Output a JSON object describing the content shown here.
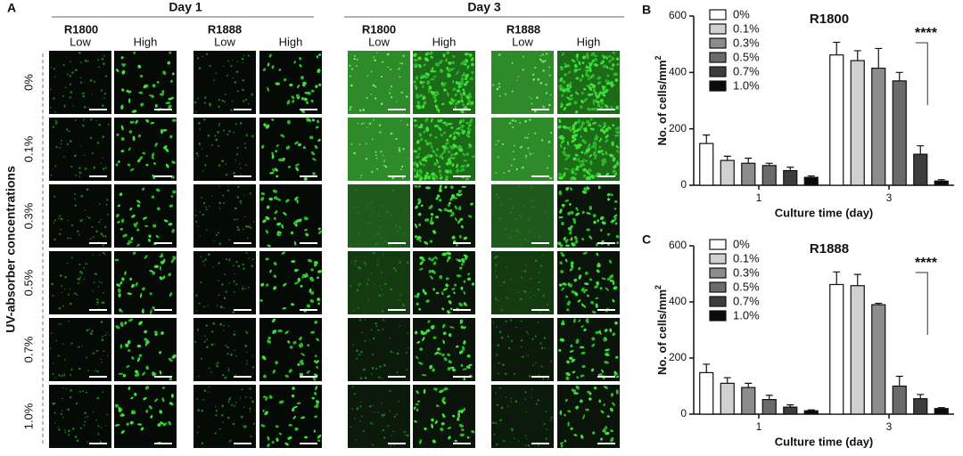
{
  "panel_a": {
    "panel_label": "A",
    "days": [
      "Day 1",
      "Day 3"
    ],
    "groups": [
      "R1800",
      "R1888",
      "R1800",
      "R1888"
    ],
    "levels": [
      "Low",
      "High",
      "Low",
      "High",
      "Low",
      "High",
      "Low",
      "High"
    ],
    "rows": [
      "0%",
      "0.1%",
      "0.3%",
      "0.5%",
      "0.7%",
      "1.0%"
    ],
    "ylabel": "UV-absorber concentrations"
  },
  "chart_data": [
    {
      "type": "bar",
      "panel_label": "B",
      "title": "R1800",
      "ylabel": "No. of cells/mm",
      "ylabel_sup": "2",
      "xlabel": "Culture time (day)",
      "categories": [
        "1",
        "3"
      ],
      "ylim": [
        0,
        600
      ],
      "yticks": [
        0,
        200,
        400,
        600
      ],
      "legend": "upper-left",
      "annotation": "****",
      "series": [
        {
          "name": "0%",
          "color": "#ffffff",
          "values": [
            148,
            462
          ],
          "errors": [
            30,
            45
          ]
        },
        {
          "name": "0.1%",
          "color": "#d0d0d0",
          "values": [
            88,
            442
          ],
          "errors": [
            15,
            35
          ]
        },
        {
          "name": "0.3%",
          "color": "#8c8c8c",
          "values": [
            78,
            415
          ],
          "errors": [
            18,
            70
          ]
        },
        {
          "name": "0.5%",
          "color": "#6a6a6a",
          "values": [
            70,
            370
          ],
          "errors": [
            8,
            30
          ]
        },
        {
          "name": "0.7%",
          "color": "#3c3c3c",
          "values": [
            52,
            110
          ],
          "errors": [
            12,
            30
          ]
        },
        {
          "name": "1.0%",
          "color": "#0a0a0a",
          "values": [
            28,
            15
          ],
          "errors": [
            5,
            5
          ]
        }
      ]
    },
    {
      "type": "bar",
      "panel_label": "C",
      "title": "R1888",
      "ylabel": "No. of cells/mm",
      "ylabel_sup": "2",
      "xlabel": "Culture time (day)",
      "categories": [
        "1",
        "3"
      ],
      "ylim": [
        0,
        600
      ],
      "yticks": [
        0,
        200,
        400,
        600
      ],
      "legend": "upper-left",
      "annotation": "****",
      "series": [
        {
          "name": "0%",
          "color": "#ffffff",
          "values": [
            148,
            462
          ],
          "errors": [
            30,
            45
          ]
        },
        {
          "name": "0.1%",
          "color": "#d0d0d0",
          "values": [
            110,
            458
          ],
          "errors": [
            20,
            40
          ]
        },
        {
          "name": "0.3%",
          "color": "#8c8c8c",
          "values": [
            95,
            390
          ],
          "errors": [
            15,
            5
          ]
        },
        {
          "name": "0.5%",
          "color": "#6a6a6a",
          "values": [
            52,
            100
          ],
          "errors": [
            15,
            35
          ]
        },
        {
          "name": "0.7%",
          "color": "#3c3c3c",
          "values": [
            25,
            55
          ],
          "errors": [
            8,
            15
          ]
        },
        {
          "name": "1.0%",
          "color": "#0a0a0a",
          "values": [
            12,
            20
          ],
          "errors": [
            3,
            3
          ]
        }
      ]
    }
  ]
}
